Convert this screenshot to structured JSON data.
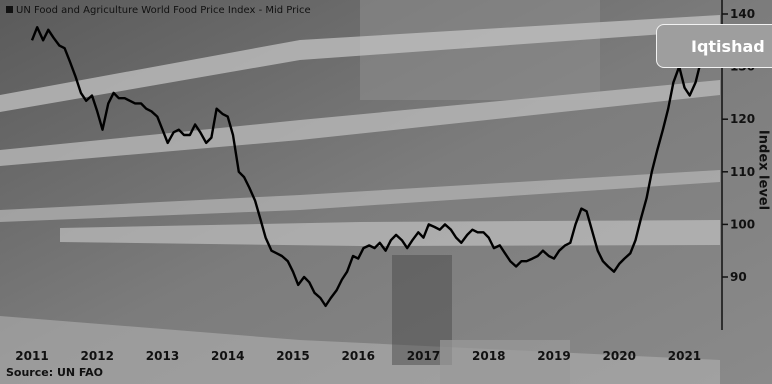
{
  "chart_data": {
    "type": "line",
    "title": "UN Food and Agriculture World Food Price Index - Mid Price",
    "ylabel": "Index level",
    "xlabel": "",
    "source": "Source: UN FAO",
    "ylim": [
      80,
      142
    ],
    "y_ticks": [
      90,
      100,
      110,
      120,
      130,
      140
    ],
    "x_ticks": [
      "2011",
      "2012",
      "2013",
      "2014",
      "2015",
      "2016",
      "2017",
      "2018",
      "2019",
      "2020",
      "2021"
    ],
    "series": [
      {
        "values": [
          [
            2011.0,
            135.0
          ],
          [
            2011.08,
            137.5
          ],
          [
            2011.17,
            135.0
          ],
          [
            2011.25,
            137.0
          ],
          [
            2011.33,
            135.5
          ],
          [
            2011.42,
            134.0
          ],
          [
            2011.5,
            133.5
          ],
          [
            2011.58,
            131.0
          ],
          [
            2011.67,
            128.0
          ],
          [
            2011.75,
            125.0
          ],
          [
            2011.83,
            123.5
          ],
          [
            2011.92,
            124.5
          ],
          [
            2012.0,
            121.5
          ],
          [
            2012.08,
            118.0
          ],
          [
            2012.17,
            123.0
          ],
          [
            2012.25,
            125.0
          ],
          [
            2012.33,
            124.0
          ],
          [
            2012.42,
            124.0
          ],
          [
            2012.5,
            123.5
          ],
          [
            2012.58,
            123.0
          ],
          [
            2012.67,
            123.0
          ],
          [
            2012.75,
            122.0
          ],
          [
            2012.83,
            121.5
          ],
          [
            2012.92,
            120.5
          ],
          [
            2013.0,
            118.0
          ],
          [
            2013.08,
            115.5
          ],
          [
            2013.17,
            117.5
          ],
          [
            2013.25,
            118.0
          ],
          [
            2013.33,
            117.0
          ],
          [
            2013.42,
            117.0
          ],
          [
            2013.5,
            119.0
          ],
          [
            2013.58,
            117.5
          ],
          [
            2013.67,
            115.5
          ],
          [
            2013.75,
            116.5
          ],
          [
            2013.83,
            122.0
          ],
          [
            2013.92,
            121.0
          ],
          [
            2014.0,
            120.5
          ],
          [
            2014.08,
            117.0
          ],
          [
            2014.17,
            110.0
          ],
          [
            2014.25,
            109.0
          ],
          [
            2014.33,
            107.0
          ],
          [
            2014.42,
            104.5
          ],
          [
            2014.5,
            101.0
          ],
          [
            2014.58,
            97.5
          ],
          [
            2014.67,
            95.0
          ],
          [
            2014.75,
            94.5
          ],
          [
            2014.83,
            94.0
          ],
          [
            2014.92,
            93.0
          ],
          [
            2015.0,
            91.0
          ],
          [
            2015.08,
            88.5
          ],
          [
            2015.17,
            90.0
          ],
          [
            2015.25,
            89.0
          ],
          [
            2015.33,
            87.0
          ],
          [
            2015.42,
            86.0
          ],
          [
            2015.5,
            84.5
          ],
          [
            2015.58,
            86.0
          ],
          [
            2015.67,
            87.5
          ],
          [
            2015.75,
            89.5
          ],
          [
            2015.83,
            91.0
          ],
          [
            2015.92,
            94.0
          ],
          [
            2016.0,
            93.5
          ],
          [
            2016.08,
            95.5
          ],
          [
            2016.17,
            96.0
          ],
          [
            2016.25,
            95.5
          ],
          [
            2016.33,
            96.5
          ],
          [
            2016.42,
            95.0
          ],
          [
            2016.5,
            97.0
          ],
          [
            2016.58,
            98.0
          ],
          [
            2016.67,
            97.0
          ],
          [
            2016.75,
            95.5
          ],
          [
            2016.83,
            97.0
          ],
          [
            2016.92,
            98.5
          ],
          [
            2017.0,
            97.5
          ],
          [
            2017.08,
            100.0
          ],
          [
            2017.17,
            99.5
          ],
          [
            2017.25,
            99.0
          ],
          [
            2017.33,
            100.0
          ],
          [
            2017.42,
            99.0
          ],
          [
            2017.5,
            97.5
          ],
          [
            2017.58,
            96.5
          ],
          [
            2017.67,
            98.0
          ],
          [
            2017.75,
            99.0
          ],
          [
            2017.83,
            98.5
          ],
          [
            2017.92,
            98.5
          ],
          [
            2018.0,
            97.5
          ],
          [
            2018.08,
            95.5
          ],
          [
            2018.17,
            96.0
          ],
          [
            2018.25,
            94.5
          ],
          [
            2018.33,
            93.0
          ],
          [
            2018.42,
            92.0
          ],
          [
            2018.5,
            93.0
          ],
          [
            2018.58,
            93.0
          ],
          [
            2018.67,
            93.5
          ],
          [
            2018.75,
            94.0
          ],
          [
            2018.83,
            95.0
          ],
          [
            2018.92,
            94.0
          ],
          [
            2019.0,
            93.5
          ],
          [
            2019.08,
            95.0
          ],
          [
            2019.17,
            96.0
          ],
          [
            2019.25,
            96.5
          ],
          [
            2019.33,
            100.0
          ],
          [
            2019.42,
            103.0
          ],
          [
            2019.5,
            102.5
          ],
          [
            2019.58,
            99.0
          ],
          [
            2019.67,
            95.0
          ],
          [
            2019.75,
            93.0
          ],
          [
            2019.83,
            92.0
          ],
          [
            2019.92,
            91.0
          ],
          [
            2020.0,
            92.5
          ],
          [
            2020.08,
            93.5
          ],
          [
            2020.17,
            94.5
          ],
          [
            2020.25,
            97.0
          ],
          [
            2020.33,
            101.0
          ],
          [
            2020.42,
            105.0
          ],
          [
            2020.5,
            110.0
          ],
          [
            2020.58,
            114.0
          ],
          [
            2020.67,
            118.0
          ],
          [
            2020.75,
            122.0
          ],
          [
            2020.83,
            127.0
          ],
          [
            2020.92,
            130.0
          ],
          [
            2021.0,
            126.0
          ],
          [
            2021.08,
            124.5
          ],
          [
            2021.17,
            127.0
          ],
          [
            2021.25,
            131.0
          ],
          [
            2021.33,
            132.0
          ]
        ]
      }
    ],
    "grid": false,
    "colors": {
      "line": "#000000",
      "axis": "#111111",
      "brand_bg": "#9e9e9e"
    }
  },
  "watermark": {
    "text": "Iqtishad"
  }
}
